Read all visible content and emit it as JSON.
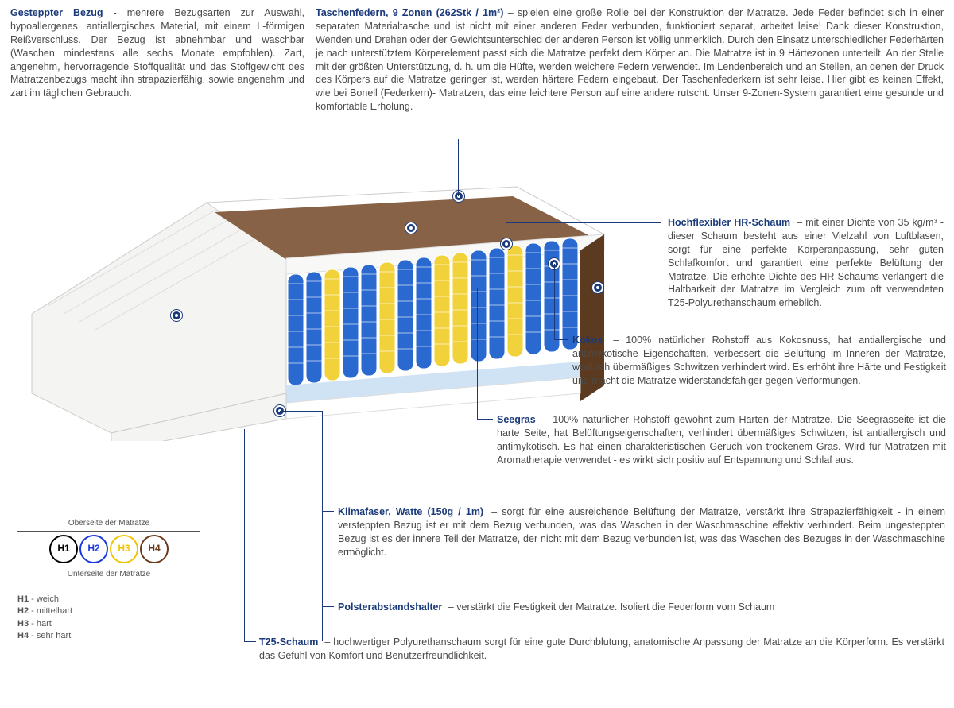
{
  "colors": {
    "accent": "#1a3a7a",
    "text": "#4a4a4a",
    "h1": "#000000",
    "h2": "#1a3ae0",
    "h3": "#f0c400",
    "h4": "#6b3a1a",
    "spring_blue": "#2a6ad0",
    "spring_yellow": "#f2d23a",
    "coconut": "#876246",
    "seagrass": "#5b3a1f",
    "foam_light": "#cfe3f5",
    "cover": "#f4f4f2"
  },
  "top_left": {
    "title": "Gesteppter Bezug",
    "text": " - mehrere Bezugsarten zur Auswahl, hypoallergenes, antiallergisches Material, mit einem L-förmigen Reißverschluss. Der Bezug ist abnehmbar und waschbar (Waschen mindestens alle sechs Monate empfohlen). Zart, angenehm, hervorragende Stoffqualität und das Stoffgewicht des Matratzenbezugs macht ihn strapazierfähig, sowie angenehm und zart im täglichen Gebrauch."
  },
  "top_right": {
    "title": "Taschenfedern, 9 Zonen (262Stk / 1m²)",
    "text": " – spielen eine große Rolle bei der Konstruktion der Matratze. Jede Feder befindet sich in einer separaten Materialtasche und ist nicht mit einer anderen Feder verbunden, funktioniert separat, arbeitet leise! Dank dieser Konstruktion, Wenden und Drehen oder der Gewichtsunterschied der anderen Person ist völlig unmerklich. Durch den Einsatz unterschiedlicher Federhärten je nach unterstütztem Körperelement passt sich die Matratze perfekt dem Körper an. Die Matratze ist in 9 Härtezonen unterteilt. An der Stelle mit der größten Unterstützung, d. h. um die Hüfte, werden weichere Federn verwendet. Im Lendenbereich und an Stellen, an denen der Druck des Körpers auf die Matratze geringer ist, werden härtere Federn eingebaut. Der Taschenfederkern ist sehr leise. Hier gibt es keinen Effekt, wie bei Bonell (Federkern)- Matratzen, das eine leichtere Person auf eine andere rutscht. Unser 9-Zonen-System garantiert eine gesunde und komfortable Erholung."
  },
  "callouts": {
    "hr": {
      "title": "Hochflexibler HR-Schaum",
      "text": " – mit einer Dichte von 35 kg/m³ - dieser Schaum besteht aus einer Vielzahl von Luftblasen, sorgt für eine perfekte Körperanpassung, sehr guten Schlafkomfort und garantiert eine perfekte Belüftung der Matratze. Die erhöhte Dichte des HR-Schaums verlängert die Haltbarkeit der Matratze im Vergleich zum oft verwendeten T25-Polyurethanschaum erheblich."
    },
    "kokos": {
      "title": "Kokos",
      "text": " – 100% natürlicher Rohstoff aus Kokosnuss, hat antiallergische und antimykotische Eigenschaften, verbessert die Belüftung im Inneren der Matratze, wodurch übermäßiges Schwitzen verhindert wird. Es erhöht ihre Härte und Festigkeit und macht die Matratze widerstandsfähiger gegen Verformungen."
    },
    "seegras": {
      "title": "Seegras",
      "text": " – 100% natürlicher Rohstoff gewöhnt zum Härten der Matratze. Die Seegrasseite ist die harte Seite, hat Belüftungseigenschaften, verhindert übermäßiges Schwitzen, ist antiallergisch und antimykotisch. Es hat einen charakteristischen Geruch von trockenem Gras. Wird für Matratzen mit Aromatherapie verwendet - es wirkt sich positiv auf Entspannung und Schlaf aus."
    },
    "klima": {
      "title": "Klimafaser, Watte (150g / 1m)",
      "text": " – sorgt für eine ausreichende Belüftung der Matratze, verstärkt ihre Strapazierfähigkeit - in einem versteppten Bezug ist er mit dem Bezug verbunden, was das Waschen in der Waschmaschine effektiv verhindert. Beim ungesteppten Bezug ist es der innere Teil der Matratze, der nicht mit dem Bezug verbunden ist, was das Waschen des Bezuges in der Waschmaschine ermöglicht."
    },
    "polster": {
      "title": "Polsterabstandshalter",
      "text": " – verstärkt die Festigkeit der Matratze. Isoliert die Federform vom Schaum"
    },
    "t25": {
      "title": "T25-Schaum",
      "text": " – hochwertiger Polyurethanschaum sorgt für eine gute Durchblutung, anatomische Anpassung der Matratze an die Körperform. Es verstärkt das Gefühl von Komfort und Benutzerfreundlichkeit."
    }
  },
  "legend": {
    "top": "Oberseite der Matratze",
    "bottom": "Unterseite der Matratze",
    "items": [
      {
        "code": "H1",
        "label": "weich"
      },
      {
        "code": "H2",
        "label": "mittelhart"
      },
      {
        "code": "H3",
        "label": "hart"
      },
      {
        "code": "H4",
        "label": "sehr hart"
      }
    ]
  }
}
